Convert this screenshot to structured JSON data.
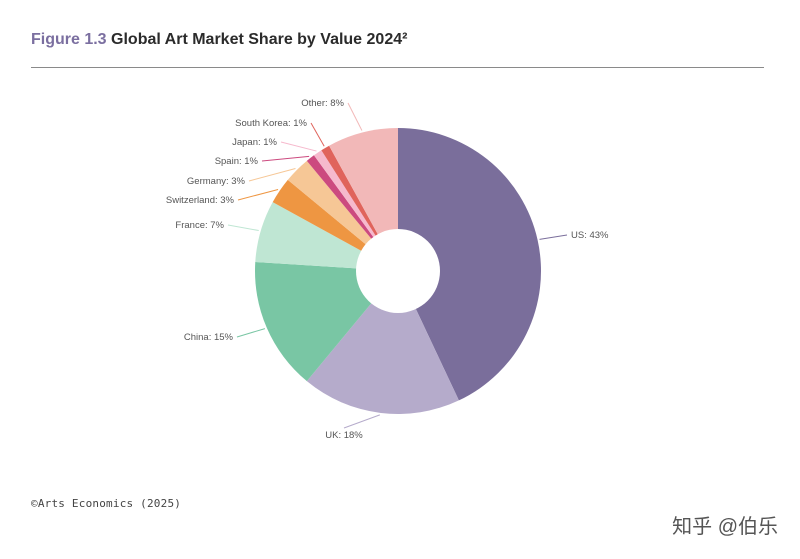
{
  "header": {
    "figure_number": "Figure 1.3",
    "title": "Global Art Market Share by Value 2024²"
  },
  "footer": {
    "source": "©Arts Economics (2025)",
    "watermark": "知乎 @伯乐"
  },
  "chart_data": {
    "type": "pie",
    "donut": true,
    "title": "Global Art Market Share by Value 2024²",
    "legend": "none",
    "unit": "%",
    "slices": [
      {
        "label": "US: 43%",
        "category": "US",
        "value": 43,
        "color": "#7a6e9b"
      },
      {
        "label": "UK: 18%",
        "category": "UK",
        "value": 18,
        "color": "#b5abcb"
      },
      {
        "label": "China: 15%",
        "category": "China",
        "value": 15,
        "color": "#79c6a4"
      },
      {
        "label": "France: 7%",
        "category": "France",
        "value": 7,
        "color": "#bfe6d3"
      },
      {
        "label": "Switzerland: 3%",
        "category": "Switzerland",
        "value": 3,
        "color": "#ee9642"
      },
      {
        "label": "Germany: 3%",
        "category": "Germany",
        "value": 3,
        "color": "#f6c796"
      },
      {
        "label": "Spain: 1%",
        "category": "Spain",
        "value": 1,
        "color": "#cc4a7f"
      },
      {
        "label": "Japan: 1%",
        "category": "Japan",
        "value": 1,
        "color": "#f6b9cd"
      },
      {
        "label": "South Korea: 1%",
        "category": "South Korea",
        "value": 1,
        "color": "#e0645c"
      },
      {
        "label": "Other: 8%",
        "category": "Other",
        "value": 8,
        "color": "#f2b8b8"
      }
    ]
  }
}
